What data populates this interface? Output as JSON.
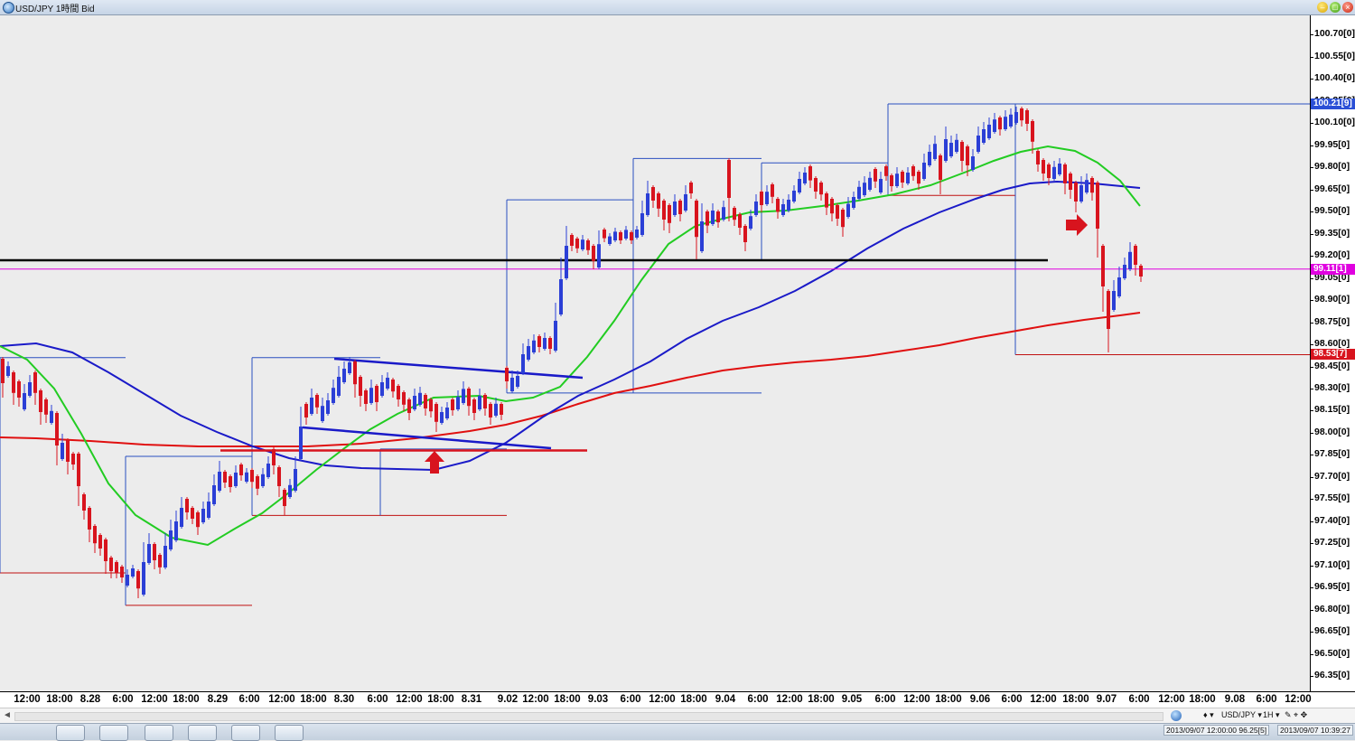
{
  "window": {
    "title": "USD/JPY 1時間 Bid",
    "minimize_symbol": "–",
    "maximize_symbol": "□",
    "close_symbol": "×"
  },
  "price_axis": {
    "labels": [
      "100.70[0]",
      "100.55[0]",
      "100.40[0]",
      "100.25[0]",
      "100.10[0]",
      "99.95[0]",
      "99.80[0]",
      "99.65[0]",
      "99.50[0]",
      "99.35[0]",
      "99.20[0]",
      "99.05[0]",
      "98.90[0]",
      "98.75[0]",
      "98.60[0]",
      "98.45[0]",
      "98.30[0]",
      "98.15[0]",
      "98.00[0]",
      "97.85[0]",
      "97.70[0]",
      "97.55[0]",
      "97.40[0]",
      "97.25[0]",
      "97.10[0]",
      "96.95[0]",
      "96.80[0]",
      "96.65[0]",
      "96.50[0]",
      "96.35[0]"
    ],
    "tag_high": "100.21[9]",
    "tag_current": "99.11[1]",
    "tag_low": "98.53[7]"
  },
  "time_axis": {
    "labels": [
      "12:00",
      "18:00",
      "8.28",
      "6:00",
      "12:00",
      "18:00",
      "8.29",
      "6:00",
      "12:00",
      "18:00",
      "8.30",
      "6:00",
      "12:00",
      "18:00",
      "8.31",
      "9.02",
      "12:00",
      "18:00",
      "9.03",
      "6:00",
      "12:00",
      "18:00",
      "9.04",
      "6:00",
      "12:00",
      "18:00",
      "9.05",
      "6:00",
      "12:00",
      "18:00",
      "9.06",
      "6:00",
      "12:00",
      "18:00",
      "9.07",
      "6:00",
      "12:00",
      "18:00",
      "9.08",
      "6:00",
      "12:00"
    ]
  },
  "toolbar": {
    "scroll_left": "◄",
    "indicator_symbol": "♦ ▾",
    "pair": "USD/JPY ▾",
    "timeframe": "1H ▾",
    "tool_icons": "✎ ⌖ ✥"
  },
  "status": {
    "cursor_info": "2013/09/07 12:00:00  96.25[5]",
    "clock": "2013/09/07 10:39:27"
  },
  "colors": {
    "up_candle": "#2b3fd6",
    "down_candle": "#d8141e",
    "ma_short": "#22cc22",
    "ma_mid": "#1a1ac8",
    "ma_long": "#e01010",
    "support_line": "#000000",
    "current_price_line": "#e000e0",
    "up_box": "#2a4fc0",
    "down_box": "#c01010"
  },
  "chart_data": {
    "type": "candlestick",
    "symbol": "USD/JPY",
    "timeframe": "1時間",
    "price_side": "Bid",
    "ylim": [
      96.25,
      100.82
    ],
    "reference_lines": {
      "support": 99.17,
      "current": 99.11,
      "red_horizontal": 97.88
    },
    "box_levels": [
      {
        "from": "8.27",
        "high": 98.51,
        "low": 97.05
      },
      {
        "from": "8.28",
        "high": 97.84,
        "low": 96.83
      },
      {
        "from": "8.29",
        "high": 98.51,
        "low": 96.83
      },
      {
        "from": "8.30",
        "high": 97.89,
        "low": 97.44
      },
      {
        "from": "9.02",
        "high": 99.58,
        "low": 98.27
      },
      {
        "from": "9.03",
        "high": 99.86,
        "low": 98.27
      },
      {
        "from": "9.04",
        "high": 99.86,
        "low": 99.17
      },
      {
        "from": "9.05",
        "high": 99.83,
        "low": 99.3
      },
      {
        "from": "9.06",
        "high": 100.23,
        "low": 99.61
      },
      {
        "from": "9.06 18:00",
        "high": 100.23,
        "low": 98.53
      }
    ],
    "series": [
      {
        "name": "MA short",
        "approx_values": [
          98.6,
          98.4,
          97.9,
          97.4,
          97.22,
          97.5,
          97.7,
          98.15,
          98.28,
          98.28,
          98.3,
          98.8,
          99.3,
          99.55,
          99.5,
          99.55,
          99.68,
          99.9,
          99.95,
          99.75,
          99.55
        ]
      },
      {
        "name": "MA mid",
        "approx_values": [
          98.6,
          98.6,
          98.3,
          98.0,
          97.88,
          97.78,
          97.78,
          97.9,
          98.25,
          98.7,
          98.95,
          99.2,
          99.4,
          99.6,
          99.68,
          99.65
        ]
      },
      {
        "name": "MA long",
        "approx_values": [
          98.05,
          98.02,
          98.02,
          98.05,
          98.15,
          98.35,
          98.5,
          98.6,
          98.7,
          98.78
        ]
      }
    ]
  }
}
